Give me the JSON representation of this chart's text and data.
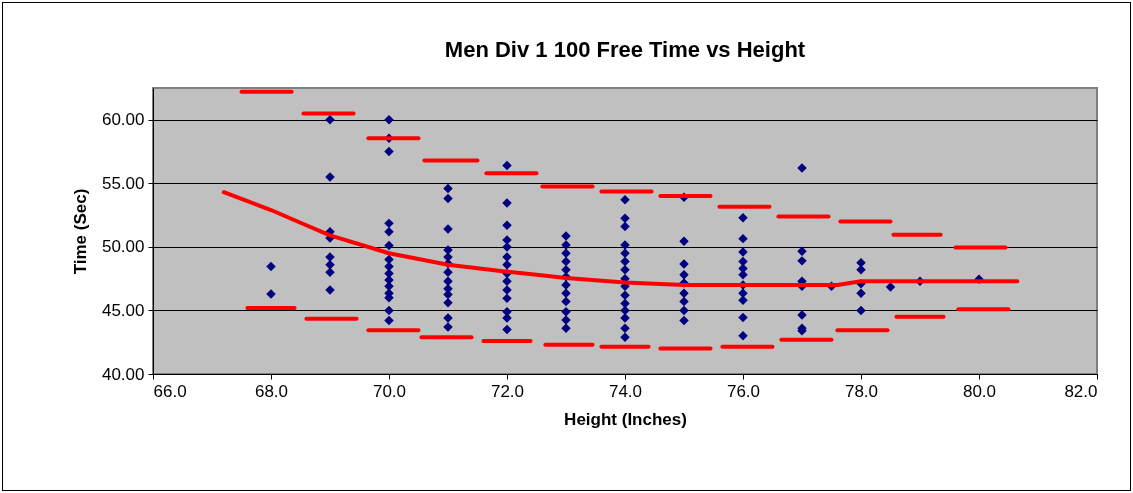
{
  "chart_data": {
    "type": "scatter",
    "title": "Men Div 1 100 Free Time vs Height",
    "xlabel": "Height (Inches)",
    "ylabel": "Time (Sec)",
    "xlim": [
      66,
      82
    ],
    "xticks": [
      {
        "value": 66,
        "label": "66.0"
      },
      {
        "value": 68,
        "label": "68.0"
      },
      {
        "value": 70,
        "label": "70.0"
      },
      {
        "value": 72,
        "label": "72.0"
      },
      {
        "value": 74,
        "label": "74.0"
      },
      {
        "value": 76,
        "label": "76.0"
      },
      {
        "value": 78,
        "label": "78.0"
      },
      {
        "value": 80,
        "label": "80.0"
      },
      {
        "value": 82,
        "label": "82.0"
      }
    ],
    "ylim": [
      40,
      62.5
    ],
    "yticks": [
      {
        "value": 40,
        "label": "40.00"
      },
      {
        "value": 45,
        "label": "45.00"
      },
      {
        "value": 50,
        "label": "50.00"
      },
      {
        "value": 55,
        "label": "55.00"
      },
      {
        "value": 60,
        "label": "60.00"
      }
    ],
    "grid": "y",
    "line_style": "solid",
    "series": [
      {
        "marker": "diamond",
        "color": "#000080",
        "x": [
          68,
          68,
          69,
          69,
          69,
          69,
          69,
          69,
          69,
          69,
          70,
          70,
          70,
          70,
          70,
          70,
          70,
          70,
          70,
          70,
          70,
          70,
          70,
          70,
          70,
          71,
          71,
          71,
          71,
          71,
          71,
          71,
          71,
          71,
          71,
          71,
          71,
          71,
          72,
          72,
          72,
          72,
          72,
          72,
          72,
          72,
          72,
          72,
          72,
          72,
          72,
          72,
          73,
          73,
          73,
          73,
          73,
          73,
          73,
          73,
          73,
          73,
          73,
          73,
          74,
          74,
          74,
          74,
          74,
          74,
          74,
          74,
          74,
          74,
          74,
          74,
          74,
          74,
          74,
          75,
          75,
          75,
          75,
          75,
          75,
          75,
          75,
          75,
          76,
          76,
          76,
          76,
          76,
          76,
          76,
          76,
          76,
          76,
          76,
          77,
          77,
          77,
          77,
          77,
          77,
          77,
          77,
          77.5,
          78,
          78,
          78,
          78,
          78,
          78.5,
          79,
          80
        ],
        "values": [
          48.45,
          46.3,
          60.0,
          55.5,
          51.2,
          50.7,
          49.2,
          48.6,
          48.0,
          46.6,
          60.0,
          58.55,
          57.5,
          51.85,
          51.2,
          50.1,
          49.0,
          48.45,
          47.9,
          47.4,
          46.9,
          46.35,
          46.0,
          45.0,
          44.2,
          54.6,
          53.8,
          51.4,
          49.75,
          49.2,
          48.7,
          48.0,
          47.3,
          46.7,
          46.25,
          45.6,
          44.4,
          43.7,
          56.4,
          53.45,
          51.7,
          50.55,
          50.0,
          49.2,
          48.6,
          47.9,
          47.3,
          46.6,
          45.95,
          44.9,
          44.4,
          43.5,
          50.85,
          50.15,
          49.5,
          48.85,
          48.2,
          47.65,
          47.0,
          46.35,
          45.7,
          44.9,
          44.25,
          43.6,
          53.7,
          52.25,
          51.6,
          50.15,
          49.5,
          48.85,
          48.2,
          47.5,
          46.9,
          46.2,
          45.55,
          45.0,
          44.4,
          43.6,
          42.9,
          53.9,
          50.45,
          48.65,
          47.8,
          47.15,
          46.35,
          45.7,
          45.0,
          44.2,
          52.3,
          50.65,
          49.6,
          48.85,
          48.3,
          47.8,
          47.0,
          46.35,
          45.8,
          44.45,
          43.0,
          56.2,
          49.65,
          48.9,
          47.3,
          46.9,
          44.65,
          43.6,
          43.4,
          46.9,
          48.75,
          48.2,
          47.1,
          46.35,
          45.0,
          46.85,
          47.3,
          47.45
        ]
      },
      {
        "type": "line",
        "color": "#ff0000",
        "x": [
          67.2,
          68.0,
          68.5,
          69.0,
          70.0,
          71.0,
          72.0,
          72.5,
          73.0,
          74.0,
          75.0,
          76.0,
          77.6,
          78.0,
          79.0,
          80.65
        ],
        "values": [
          54.3,
          52.9,
          51.9,
          50.9,
          49.5,
          48.6,
          48.05,
          47.8,
          47.55,
          47.2,
          47.0,
          47.0,
          47.0,
          47.3,
          47.3,
          47.3
        ]
      },
      {
        "type": "line",
        "color": "#ff0000",
        "x": [
          67.5,
          68.35,
          null,
          68.55,
          69.4,
          null,
          69.65,
          70.5,
          null,
          70.6,
          71.5,
          null,
          71.65,
          72.5,
          null,
          72.6,
          73.45,
          null,
          73.6,
          74.45,
          null,
          74.6,
          75.45,
          null,
          75.6,
          76.45,
          null,
          76.6,
          77.45,
          null,
          77.65,
          78.5,
          null,
          78.55,
          79.35,
          null,
          79.6,
          80.45
        ],
        "values": [
          62.2,
          62.2,
          null,
          60.5,
          60.5,
          null,
          58.55,
          58.55,
          null,
          56.8,
          56.8,
          null,
          55.8,
          55.8,
          null,
          54.75,
          54.75,
          null,
          54.35,
          54.35,
          null,
          54.0,
          54.0,
          null,
          53.15,
          53.15,
          null,
          52.4,
          52.4,
          null,
          52.0,
          52.0,
          null,
          50.95,
          50.95,
          null,
          49.95,
          49.95
        ]
      },
      {
        "type": "line",
        "color": "#ff0000",
        "x": [
          67.6,
          68.4,
          null,
          68.6,
          69.45,
          null,
          69.65,
          70.5,
          null,
          70.55,
          71.4,
          null,
          71.6,
          72.4,
          null,
          72.65,
          73.45,
          null,
          73.6,
          74.4,
          null,
          74.6,
          75.45,
          null,
          75.65,
          76.5,
          null,
          76.65,
          77.5,
          null,
          77.6,
          78.45,
          null,
          78.6,
          79.4,
          null,
          79.65,
          80.5
        ],
        "values": [
          45.2,
          45.2,
          null,
          44.35,
          44.35,
          null,
          43.45,
          43.45,
          null,
          42.9,
          42.9,
          null,
          42.6,
          42.6,
          null,
          42.3,
          42.3,
          null,
          42.15,
          42.15,
          null,
          42.0,
          42.0,
          null,
          42.15,
          42.15,
          null,
          42.7,
          42.7,
          null,
          43.45,
          43.45,
          null,
          44.5,
          44.5,
          null,
          45.1,
          45.1
        ]
      }
    ]
  }
}
